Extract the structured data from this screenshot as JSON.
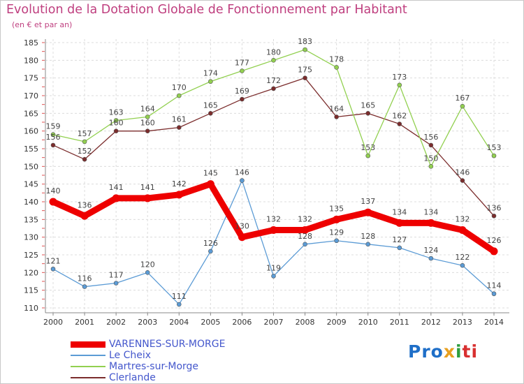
{
  "title": "Evolution de la Dotation Globale de Fonctionnement par Habitant",
  "subtitle": "(en € et par an)",
  "logo": {
    "text": "Proxiti",
    "parts": [
      "Pro",
      "x",
      "i",
      "ti"
    ]
  },
  "chart_data": {
    "type": "line",
    "title": "Evolution de la Dotation Globale de Fonctionnement par Habitant",
    "subtitle": "(en € et par an)",
    "xlabel": "",
    "ylabel": "",
    "categories": [
      "2000",
      "2001",
      "2002",
      "2003",
      "2004",
      "2005",
      "2006",
      "2007",
      "2008",
      "2009",
      "2010",
      "2011",
      "2012",
      "2013",
      "2014"
    ],
    "ylim": [
      110,
      185
    ],
    "yticks": [
      110,
      115,
      120,
      125,
      130,
      135,
      140,
      145,
      150,
      155,
      160,
      165,
      170,
      175,
      180,
      185
    ],
    "grid": true,
    "legend_position": "bottom-left",
    "series": [
      {
        "name": "VARENNES-SUR-MORGE",
        "color": "#ee0000",
        "values": [
          140,
          136,
          141,
          141,
          142,
          145,
          130,
          132,
          132,
          135,
          137,
          134,
          134,
          132,
          126
        ]
      },
      {
        "name": "Le Cheix",
        "color": "#5b9bd5",
        "values": [
          121,
          116,
          117,
          120,
          111,
          126,
          146,
          119,
          128,
          129,
          128,
          127,
          124,
          122,
          114
        ]
      },
      {
        "name": "Martres-sur-Morge",
        "color": "#92d050",
        "values": [
          159,
          157,
          163,
          164,
          170,
          174,
          177,
          180,
          183,
          178,
          153,
          173,
          150,
          167,
          153
        ]
      },
      {
        "name": "Clerlande",
        "color": "#7b2c2c",
        "values": [
          156,
          152,
          160,
          160,
          161,
          165,
          169,
          172,
          175,
          164,
          165,
          162,
          156,
          146,
          136
        ]
      }
    ]
  }
}
